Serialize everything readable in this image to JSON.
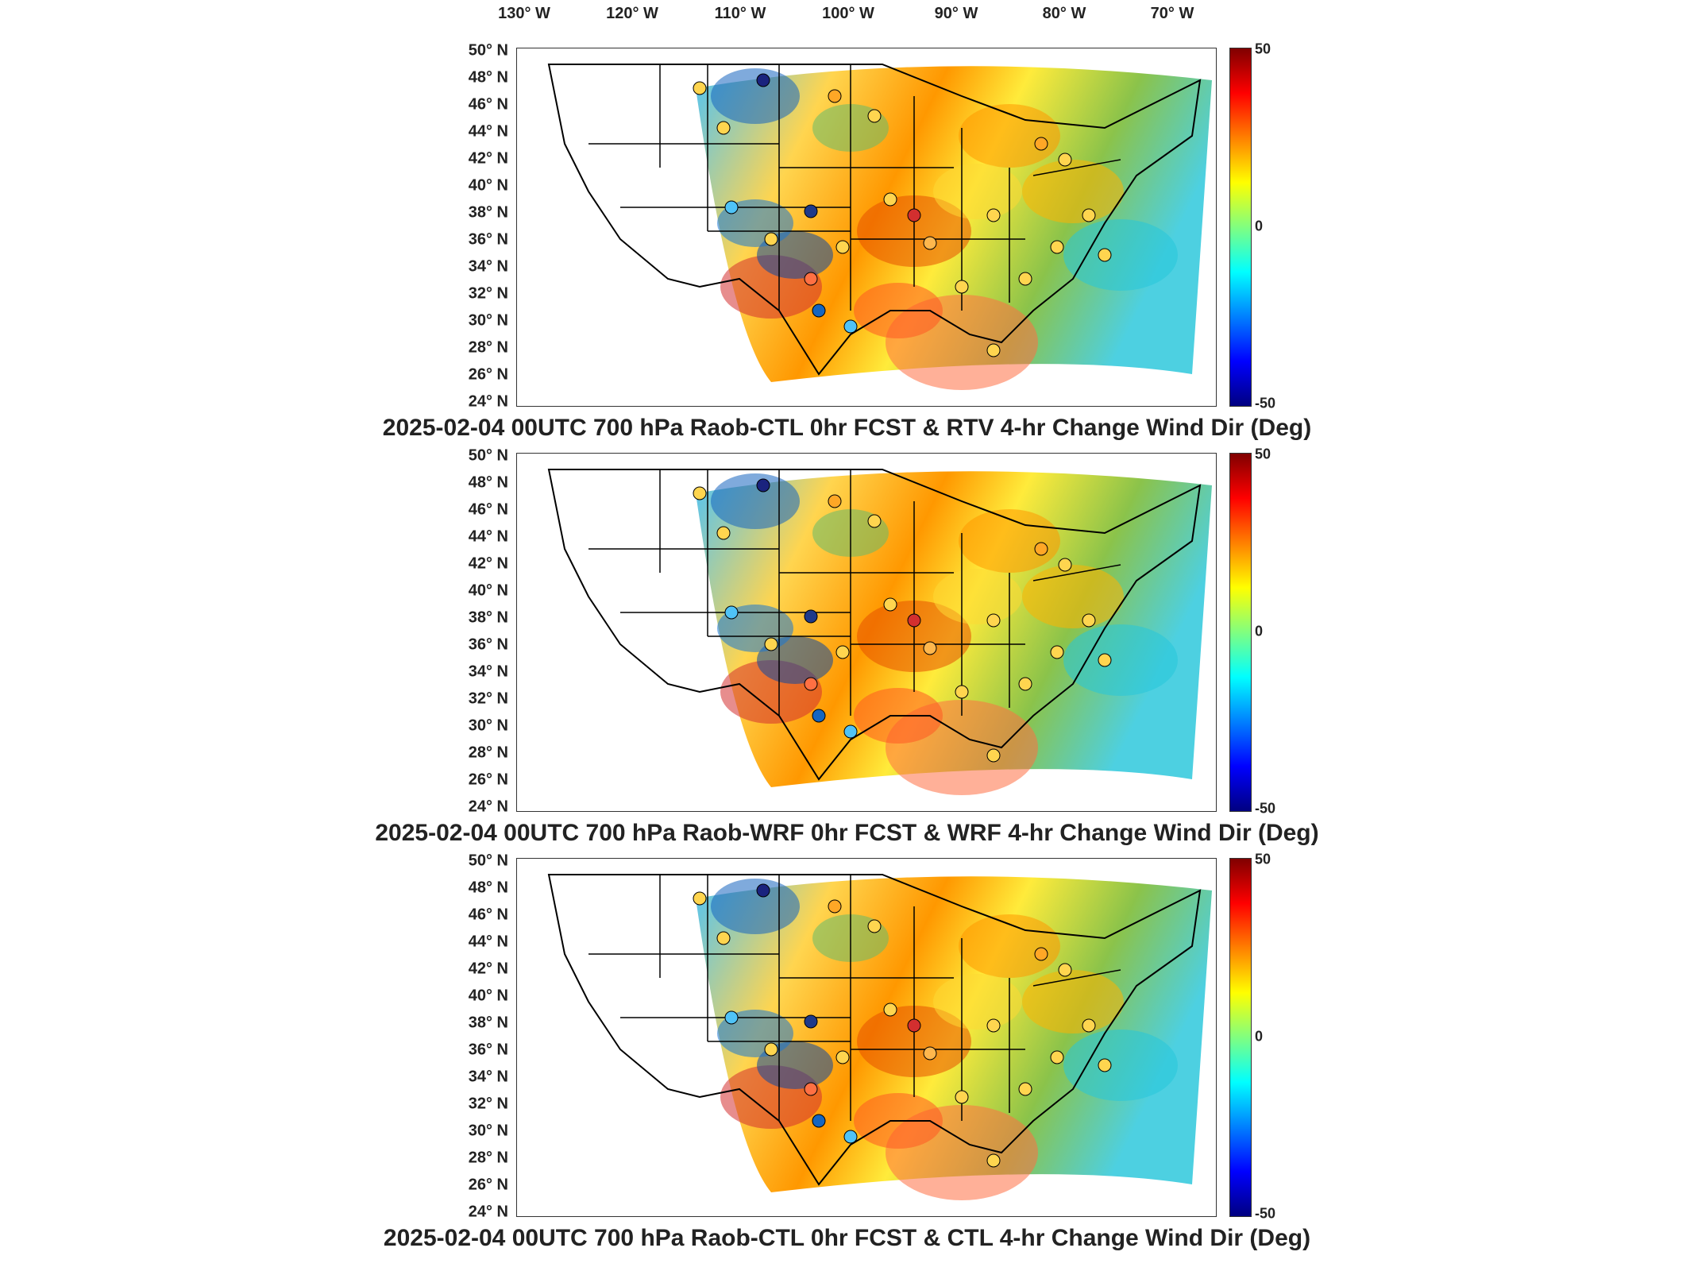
{
  "lon_labels": [
    "130° W",
    "120° W",
    "110° W",
    "100° W",
    "90° W",
    "80° W",
    "70° W"
  ],
  "lat_labels": [
    "50° N",
    "48° N",
    "46° N",
    "44° N",
    "42° N",
    "40° N",
    "38° N",
    "36° N",
    "34° N",
    "32° N",
    "30° N",
    "28° N",
    "26° N",
    "24° N"
  ],
  "colorbar": {
    "max": "50",
    "mid": "0",
    "min": "-50",
    "colors": [
      "#800000",
      "#ff0000",
      "#ff8000",
      "#ffff00",
      "#80ff80",
      "#00ffff",
      "#0080ff",
      "#0000ff",
      "#000080"
    ]
  },
  "panels": [
    {
      "title": "2025-02-04 00UTC 700 hPa Raob-CTL 0hr FCST & RTV 4-hr Change Wind Dir (Deg)"
    },
    {
      "title": "2025-02-04 00UTC 700 hPa Raob-WRF 0hr FCST & WRF 4-hr Change Wind Dir (Deg)"
    },
    {
      "title": "2025-02-04 00UTC 700 hPa Raob-CTL 0hr FCST & CTL 4-hr Change Wind Dir (Deg)"
    }
  ]
}
